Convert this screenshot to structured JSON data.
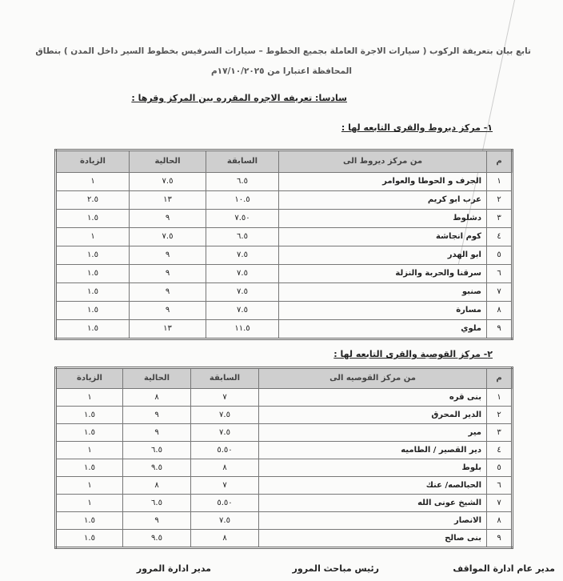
{
  "header": {
    "line1": "تابع بيان بتعريفة الركوب ( سيارات الاجرة العاملة بجميع الخطوط – سيارات السرفيس بخطوط السير داخل المدن ) بنطاق",
    "line2": "المحافظة اعتبارا من ١٧/١٠/٢٠٢٥م"
  },
  "section_title": "سادسا: تعريفه الاجره المقرره بين المركز وقرها :",
  "tables": [
    {
      "heading": "١-   مركز ديروط والقرى التابعه لها :",
      "columns": [
        "م",
        "من مركز ديروط الى",
        "السابقة",
        "الحالية",
        "الزيادة"
      ],
      "rows": [
        [
          "١",
          "الجرف و الحوطا والعوامر",
          "٦.٥",
          "٧.٥",
          "١"
        ],
        [
          "٢",
          "عرب ابو كريم",
          "١٠.٥",
          "١٣",
          "٢.٥"
        ],
        [
          "٣",
          "دشلوط",
          "٧.٥٠",
          "٩",
          "١.٥"
        ],
        [
          "٤",
          "كوم انجاشة",
          "٦.٥",
          "٧.٥",
          "١"
        ],
        [
          "٥",
          "ابو الهدر",
          "٧.٥",
          "٩",
          "١.٥"
        ],
        [
          "٦",
          "سرقنا والحربة والنزلة",
          "٧.٥",
          "٩",
          "١.٥"
        ],
        [
          "٧",
          "صنبو",
          "٧.٥",
          "٩",
          "١.٥"
        ],
        [
          "٨",
          "مسارة",
          "٧.٥",
          "٩",
          "١.٥"
        ],
        [
          "٩",
          "ملوي",
          "١١.٥",
          "١٣",
          "١.٥"
        ]
      ]
    },
    {
      "heading": "٢-  مركز القوصية والقرى التابعه لها :",
      "columns": [
        "م",
        "من مركز القوصيه الى",
        "السابقة",
        "الحالية",
        "الزيادة"
      ],
      "rows": [
        [
          "١",
          "بنى قره",
          "٧",
          "٨",
          "١"
        ],
        [
          "٢",
          "الدير المحرق",
          "٧.٥",
          "٩",
          "١.٥"
        ],
        [
          "٣",
          "مير",
          "٧.٥",
          "٩",
          "١.٥"
        ],
        [
          "٤",
          "دير القصير / الطاميه",
          "٥.٥٠",
          "٦.٥",
          "١"
        ],
        [
          "٥",
          "بلوط",
          "٨",
          "٩.٥",
          "١.٥"
        ],
        [
          "٦",
          "الحبالصه/ عنك",
          "٧",
          "٨",
          "١"
        ],
        [
          "٧",
          "الشيخ عونى الله",
          "٥.٥٠",
          "٦.٥",
          "١"
        ],
        [
          "٨",
          "الانصار",
          "٧.٥",
          "٩",
          "١.٥"
        ],
        [
          "٩",
          "بنى صالح",
          "٨",
          "٩.٥",
          "١.٥"
        ]
      ]
    }
  ],
  "signatures": [
    "مدير عام ادارة المواقف",
    "رئيس مباحث المرور",
    "مدير ادارة المرور"
  ]
}
